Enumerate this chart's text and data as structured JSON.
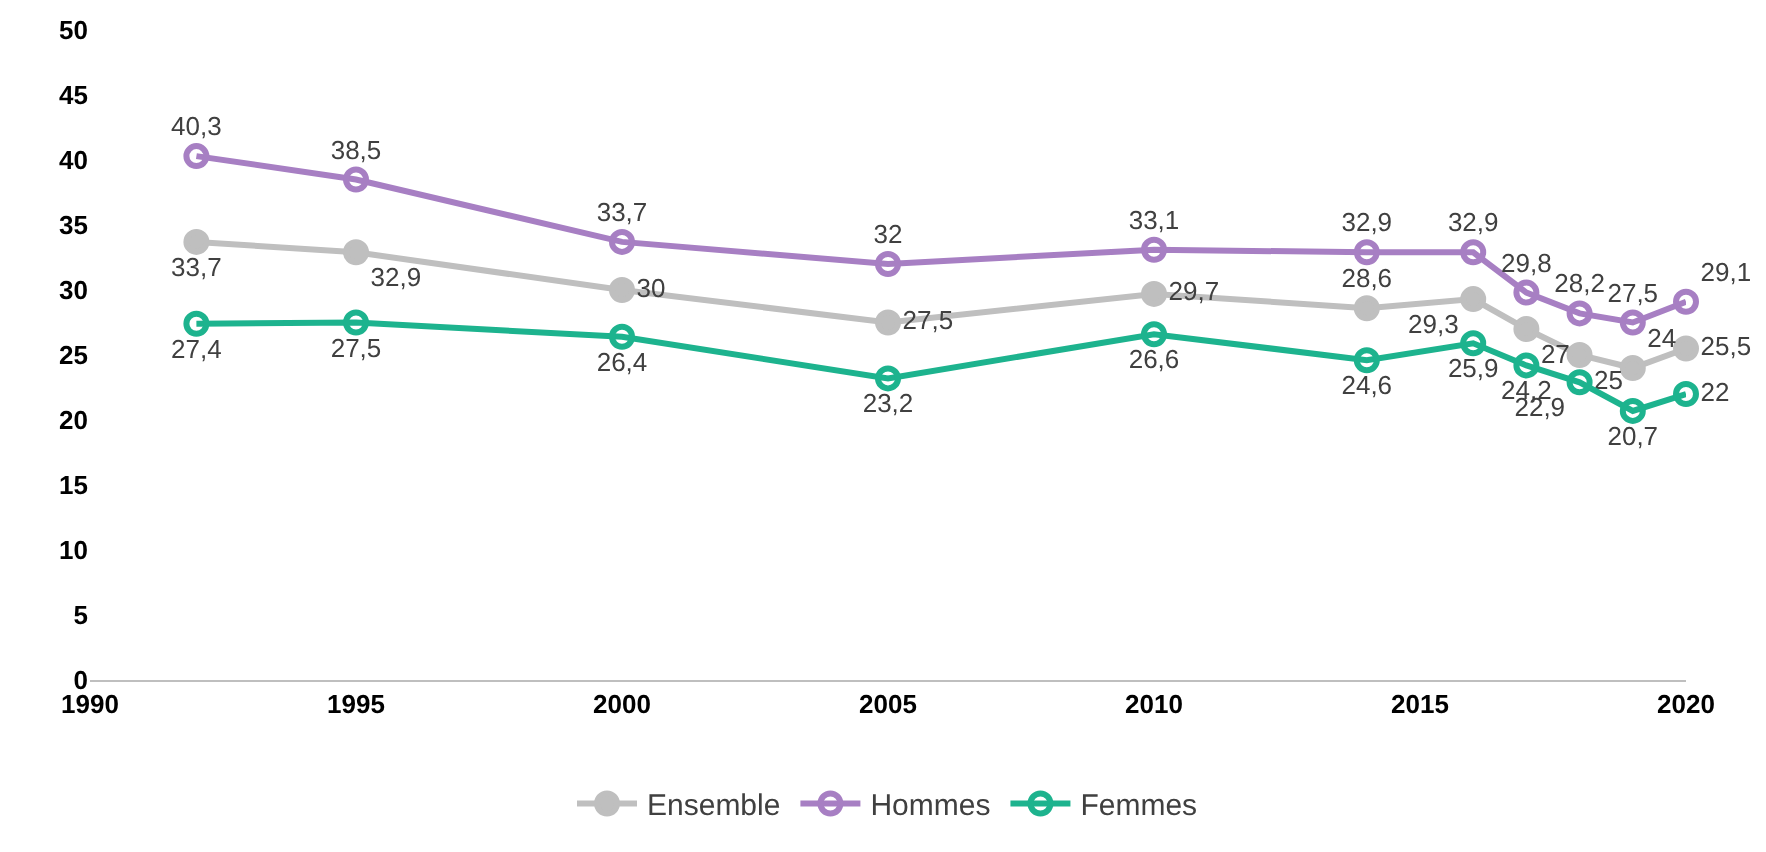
{
  "chart_data": {
    "type": "line",
    "x": [
      1992,
      1995,
      2000,
      2005,
      2010,
      2014,
      2016,
      2017,
      2018,
      2019,
      2020
    ],
    "series": [
      {
        "name": "Ensemble",
        "color": "#bfbfbf",
        "marker": "circle",
        "values": [
          33.7,
          32.9,
          30,
          27.5,
          29.7,
          28.6,
          29.3,
          27,
          25,
          24,
          25.5
        ],
        "value_labels": [
          "33,7",
          "32,9",
          "30",
          "27,5",
          "29,7",
          "28,6",
          "29,3",
          "27",
          "25",
          "24",
          "25,5"
        ]
      },
      {
        "name": "Hommes",
        "color": "#a77fc3",
        "marker": "circle-open",
        "values": [
          40.3,
          38.5,
          33.7,
          32,
          33.1,
          32.9,
          32.9,
          29.8,
          28.2,
          27.5,
          29.1
        ],
        "value_labels": [
          "40,3",
          "38,5",
          "33,7",
          "32",
          "33,1",
          "32,9",
          "32,9",
          "29,8",
          "28,2",
          "27,5",
          "29,1"
        ]
      },
      {
        "name": "Femmes",
        "color": "#1db38e",
        "marker": "circle-open",
        "values": [
          27.4,
          27.5,
          26.4,
          23.2,
          26.6,
          24.6,
          25.9,
          24.2,
          22.9,
          20.7,
          22
        ],
        "value_labels": [
          "27,4",
          "27,5",
          "26,4",
          "23,2",
          "26,6",
          "24,6",
          "25,9",
          "24,2",
          "22,9",
          "20,7",
          "22"
        ]
      }
    ],
    "xlim": [
      1990,
      2020
    ],
    "xticks": [
      1990,
      1995,
      2000,
      2005,
      2010,
      2015,
      2020
    ],
    "ylim": [
      0,
      50
    ],
    "yticks": [
      0,
      5,
      10,
      15,
      20,
      25,
      30,
      35,
      40,
      45,
      50
    ],
    "legend": "bottom"
  }
}
